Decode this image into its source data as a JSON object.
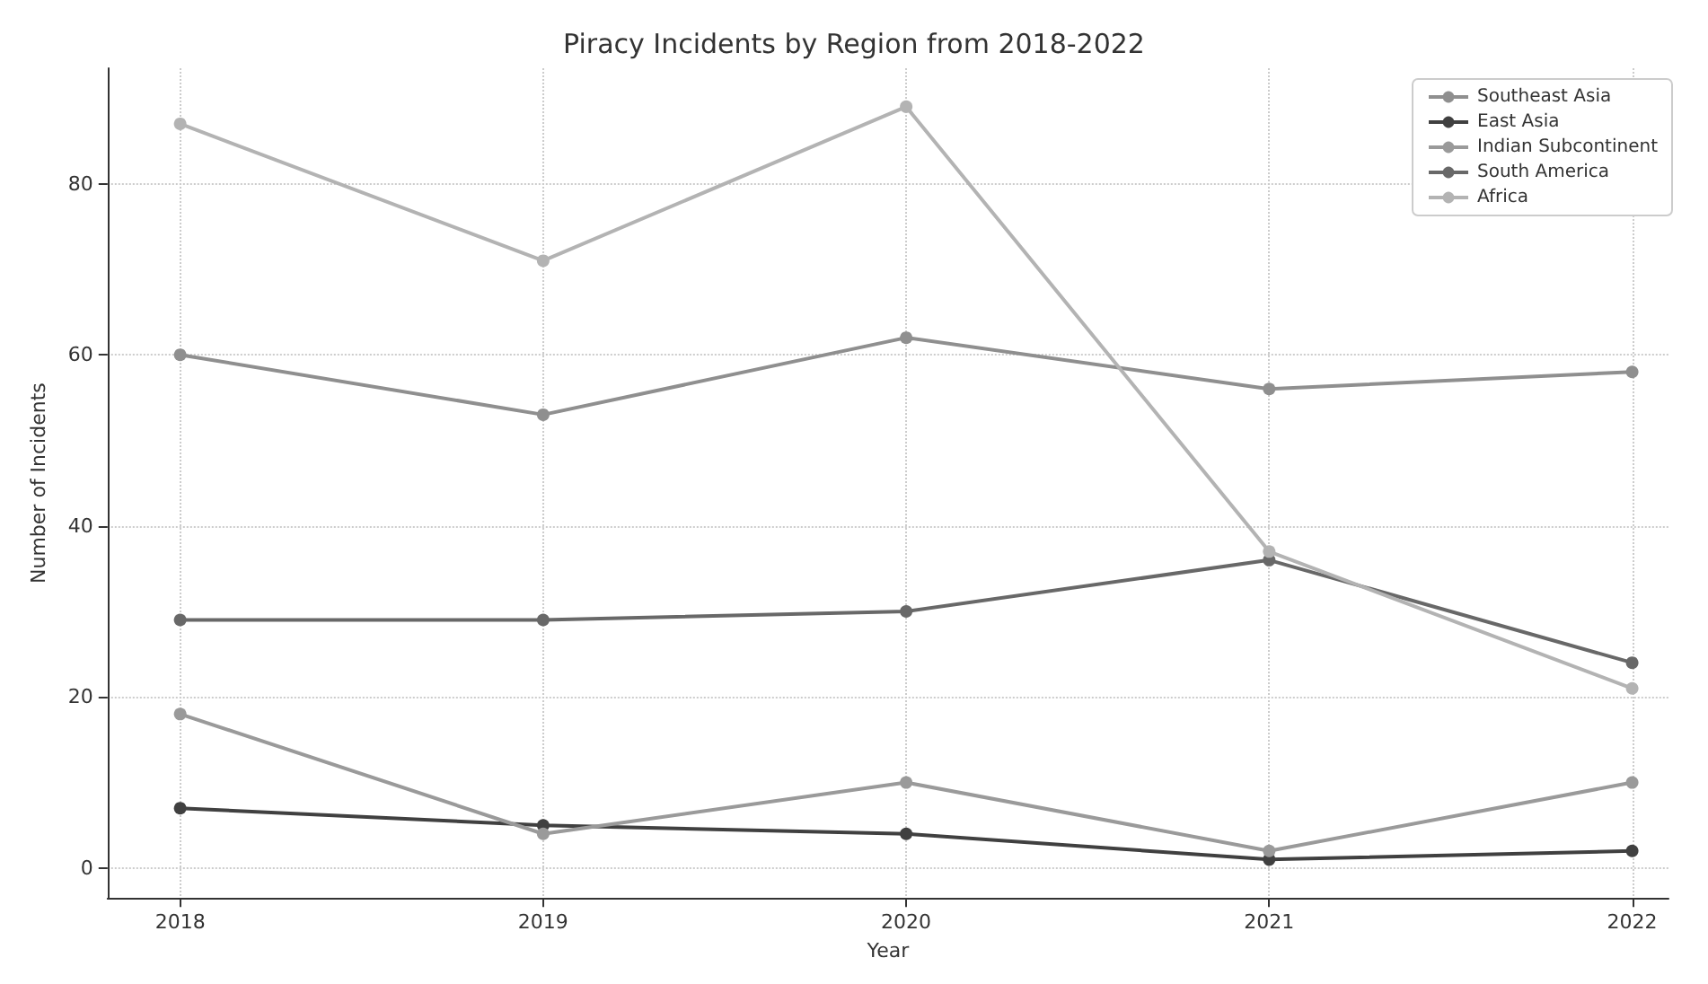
{
  "chart_data": {
    "type": "line",
    "title": "Piracy Incidents by Region from 2018-2022",
    "xlabel": "Year",
    "ylabel": "Number of Incidents",
    "x": [
      2018,
      2019,
      2020,
      2021,
      2022
    ],
    "series": [
      {
        "name": "Southeast Asia",
        "color": "#8f8f8f",
        "values": [
          60,
          53,
          62,
          56,
          58
        ]
      },
      {
        "name": "East Asia",
        "color": "#404040",
        "values": [
          7,
          5,
          4,
          1,
          2
        ]
      },
      {
        "name": "Indian Subcontinent",
        "color": "#9a9a9a",
        "values": [
          18,
          4,
          10,
          2,
          10
        ]
      },
      {
        "name": "South America",
        "color": "#686868",
        "values": [
          29,
          29,
          30,
          36,
          24
        ]
      },
      {
        "name": "Africa",
        "color": "#b3b3b3",
        "values": [
          87,
          71,
          89,
          37,
          21
        ]
      }
    ],
    "xlim": [
      2017.8,
      2022.1
    ],
    "xticks": [
      2018,
      2019,
      2020,
      2021,
      2022
    ],
    "ylim": [
      -3.5,
      93.5
    ],
    "yticks": [
      0,
      20,
      40,
      60,
      80
    ],
    "grid": true,
    "legend": "top right",
    "marker": "circle",
    "line_style": "solid"
  }
}
